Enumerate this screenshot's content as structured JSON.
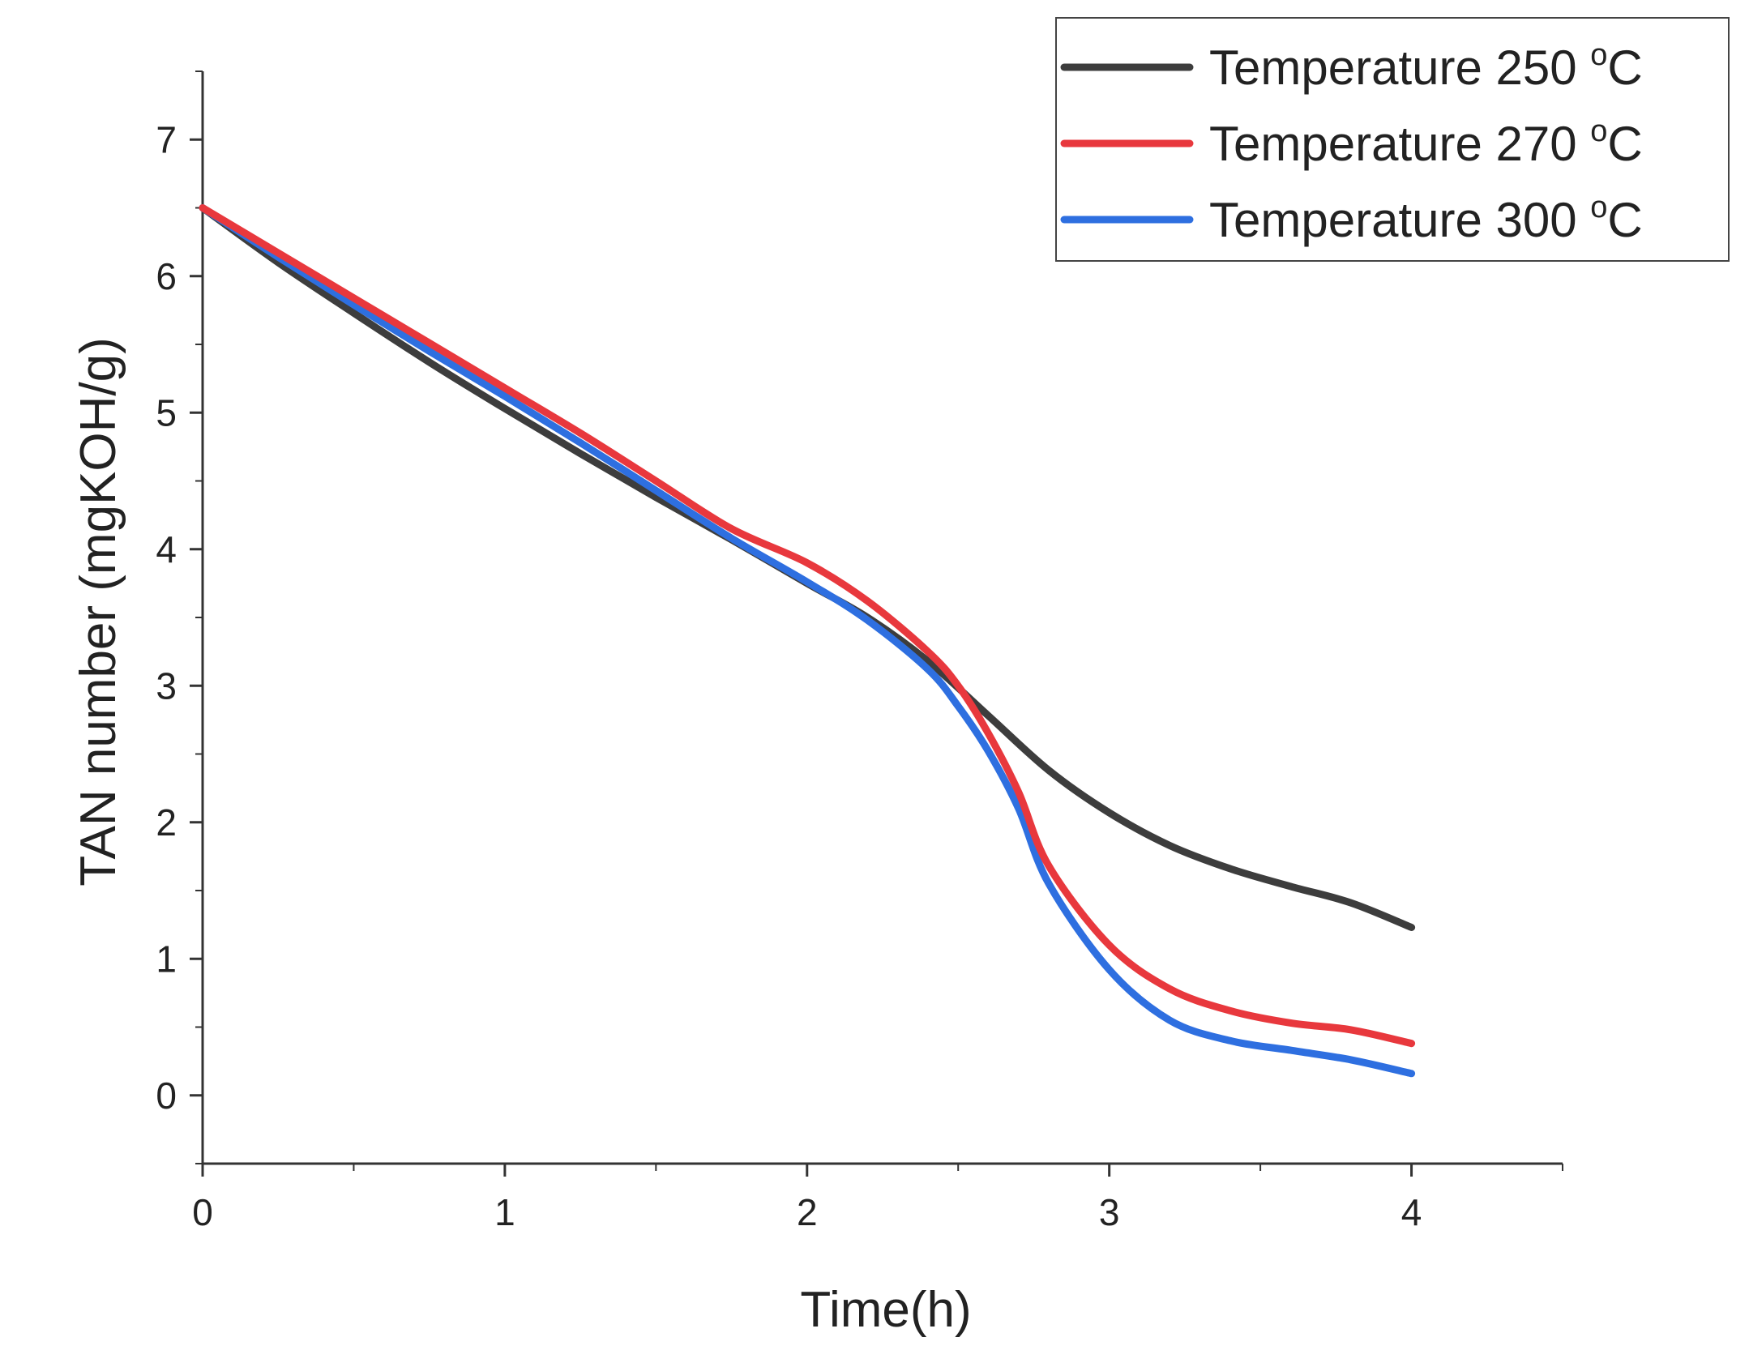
{
  "chart_data": {
    "type": "line",
    "title": "",
    "xlabel": "Time(h)",
    "ylabel": "TAN number (mgKOH/g)",
    "xlim": [
      0,
      4.5
    ],
    "ylim": [
      -0.5,
      7.5
    ],
    "x_ticks": [
      0,
      1,
      2,
      3,
      4
    ],
    "x_tick_labels": [
      "0",
      "1",
      "2",
      "3",
      "4"
    ],
    "y_ticks": [
      0,
      1,
      2,
      3,
      4,
      5,
      6,
      7
    ],
    "y_tick_labels": [
      "0",
      "1",
      "2",
      "3",
      "4",
      "5",
      "6",
      "7"
    ],
    "grid": false,
    "legend_position": "top-right",
    "series": [
      {
        "name": "Temperature 250",
        "unit_sup": "o",
        "unit": "C",
        "color": "#3d3d3d",
        "x": [
          0,
          0.25,
          0.5,
          0.75,
          1.0,
          1.25,
          1.5,
          1.75,
          2.0,
          2.2,
          2.4,
          2.6,
          2.8,
          3.0,
          3.2,
          3.4,
          3.6,
          3.8,
          4.0
        ],
        "y": [
          6.5,
          6.1,
          5.73,
          5.37,
          5.03,
          4.7,
          4.38,
          4.07,
          3.75,
          3.5,
          3.18,
          2.78,
          2.38,
          2.07,
          1.83,
          1.66,
          1.53,
          1.41,
          1.23
        ]
      },
      {
        "name": "Temperature 270",
        "unit_sup": "o",
        "unit": "C",
        "color": "#e8383d",
        "x": [
          0,
          0.25,
          0.5,
          0.75,
          1.0,
          1.25,
          1.5,
          1.75,
          2.0,
          2.2,
          2.4,
          2.5,
          2.6,
          2.7,
          2.8,
          3.0,
          3.2,
          3.4,
          3.6,
          3.8,
          4.0
        ],
        "y": [
          6.5,
          6.17,
          5.84,
          5.51,
          5.18,
          4.85,
          4.5,
          4.15,
          3.9,
          3.62,
          3.25,
          3.0,
          2.65,
          2.22,
          1.68,
          1.1,
          0.78,
          0.62,
          0.53,
          0.48,
          0.38
        ]
      },
      {
        "name": "Temperature 300",
        "unit_sup": "o",
        "unit": "C",
        "color": "#2e6fe0",
        "x": [
          0,
          0.25,
          0.5,
          0.75,
          1.0,
          1.25,
          1.5,
          1.75,
          2.0,
          2.2,
          2.4,
          2.5,
          2.6,
          2.7,
          2.8,
          3.0,
          3.2,
          3.4,
          3.6,
          3.8,
          4.0
        ],
        "y": [
          6.5,
          6.14,
          5.79,
          5.45,
          5.12,
          4.78,
          4.43,
          4.08,
          3.76,
          3.48,
          3.12,
          2.85,
          2.52,
          2.1,
          1.55,
          0.92,
          0.55,
          0.4,
          0.33,
          0.26,
          0.16
        ]
      }
    ]
  }
}
